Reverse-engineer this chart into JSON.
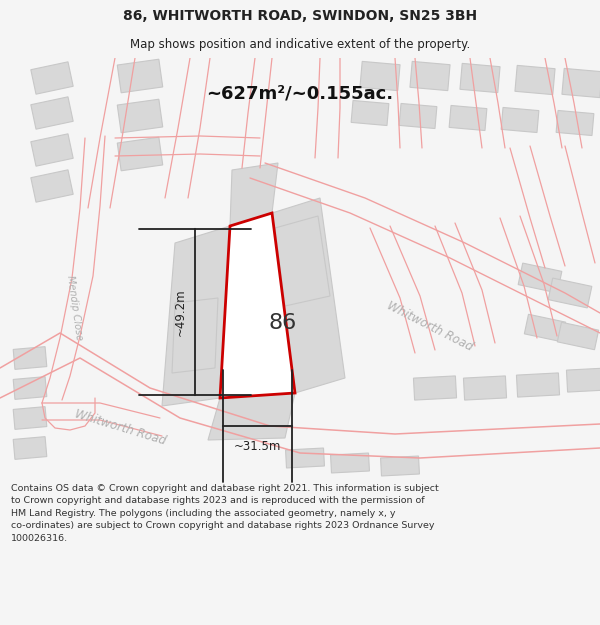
{
  "title_line1": "86, WHITWORTH ROAD, SWINDON, SN25 3BH",
  "title_line2": "Map shows position and indicative extent of the property.",
  "area_text": "~627m²/~0.155ac.",
  "number_label": "86",
  "dim_width": "~31.5m",
  "dim_height": "~49.2m",
  "road_label_diag": "Whitworth Road",
  "road_label_lower": "Whitworth Road",
  "road_label_left": "Mendip Close",
  "footer_text": "Contains OS data © Crown copyright and database right 2021. This information is subject\nto Crown copyright and database rights 2023 and is reproduced with the permission of\nHM Land Registry. The polygons (including the associated geometry, namely x, y\nco-ordinates) are subject to Crown copyright and database rights 2023 Ordnance Survey\n100026316.",
  "bg_color": "#f5f5f5",
  "map_bg_color": "#ffffff",
  "road_line_color": "#f0a0a0",
  "building_fill": "#d8d8d8",
  "building_edge": "#c8c8c8",
  "highlight_fill": "#ffffff",
  "highlight_edge": "#cc0000",
  "dim_color": "#222222",
  "title_color": "#222222",
  "footer_color": "#333333",
  "label_color": "#aaaaaa",
  "number_color": "#333333"
}
